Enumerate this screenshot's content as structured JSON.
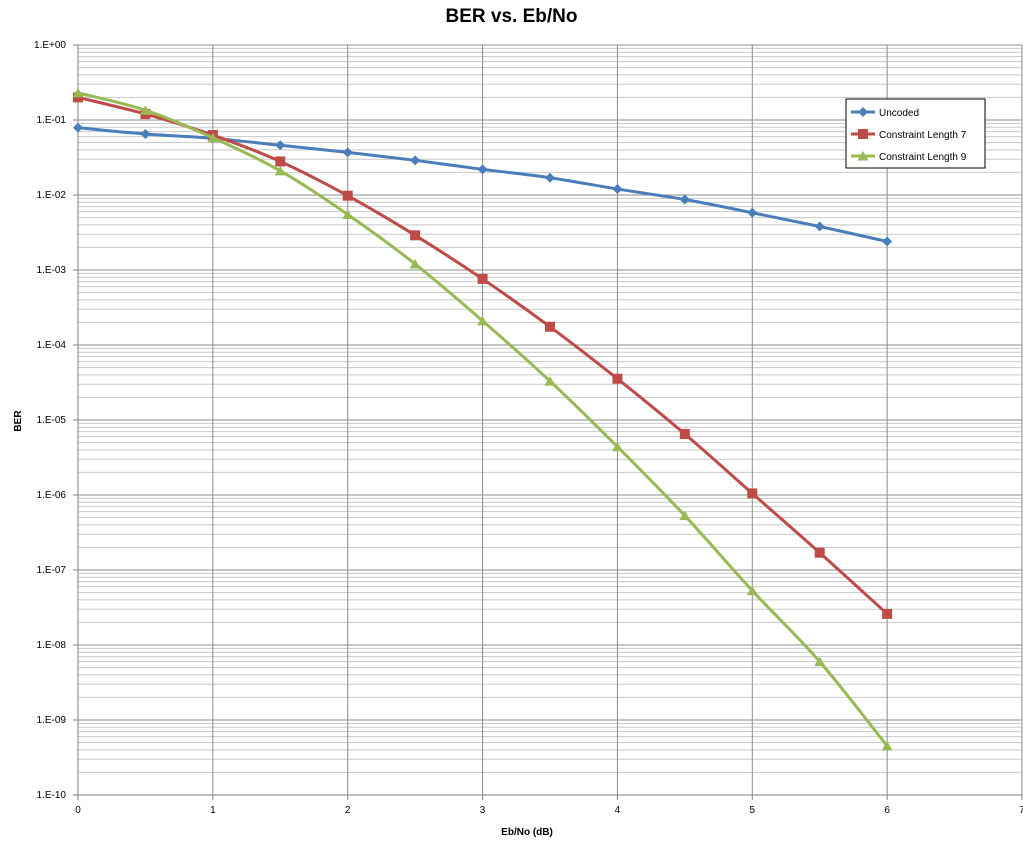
{
  "chart_data": {
    "type": "line",
    "title": "BER vs. Eb/No",
    "xlabel": "Eb/No (dB)",
    "ylabel": "BER",
    "xlim": [
      0,
      7
    ],
    "ylim": [
      1e-10,
      1
    ],
    "yscale": "log",
    "grid": true,
    "legend_position": "top-right",
    "x_ticks": [
      0,
      1,
      2,
      3,
      4,
      5,
      6,
      7
    ],
    "x_tick_labels": [
      "0",
      "1",
      "2",
      "3",
      "4",
      "5",
      "6",
      "7"
    ],
    "y_tick_labels": [
      "1.E+00",
      "1.E-01",
      "1.E-02",
      "1.E-03",
      "1.E-04",
      "1.E-05",
      "1.E-06",
      "1.E-07",
      "1.E-08",
      "1.E-09",
      "1.E-10"
    ],
    "x": [
      0,
      0.5,
      1,
      1.5,
      2,
      2.5,
      3,
      3.5,
      4,
      4.5,
      5,
      5.5,
      6
    ],
    "series": [
      {
        "name": "Uncoded",
        "color": "#4A7EBB",
        "marker": "diamond",
        "values": [
          0.079,
          0.065,
          0.057,
          0.046,
          0.037,
          0.029,
          0.022,
          0.017,
          0.012,
          0.0087,
          0.0058,
          0.0038,
          0.0024
        ]
      },
      {
        "name": "Constraint Length 7",
        "color": "#BE4B48",
        "marker": "square",
        "values": [
          0.2,
          0.12,
          0.063,
          0.028,
          0.0098,
          0.0029,
          0.00076,
          0.000175,
          3.55e-05,
          6.5e-06,
          1.05e-06,
          1.7e-07,
          2.6e-08
        ]
      },
      {
        "name": "Constraint Length 9",
        "color": "#98B954",
        "marker": "triangle",
        "values": [
          0.23,
          0.135,
          0.058,
          0.021,
          0.0055,
          0.0012,
          0.00021,
          3.3e-05,
          4.4e-06,
          5.3e-07,
          5.3e-08,
          6e-09,
          4.5e-10
        ]
      }
    ]
  }
}
